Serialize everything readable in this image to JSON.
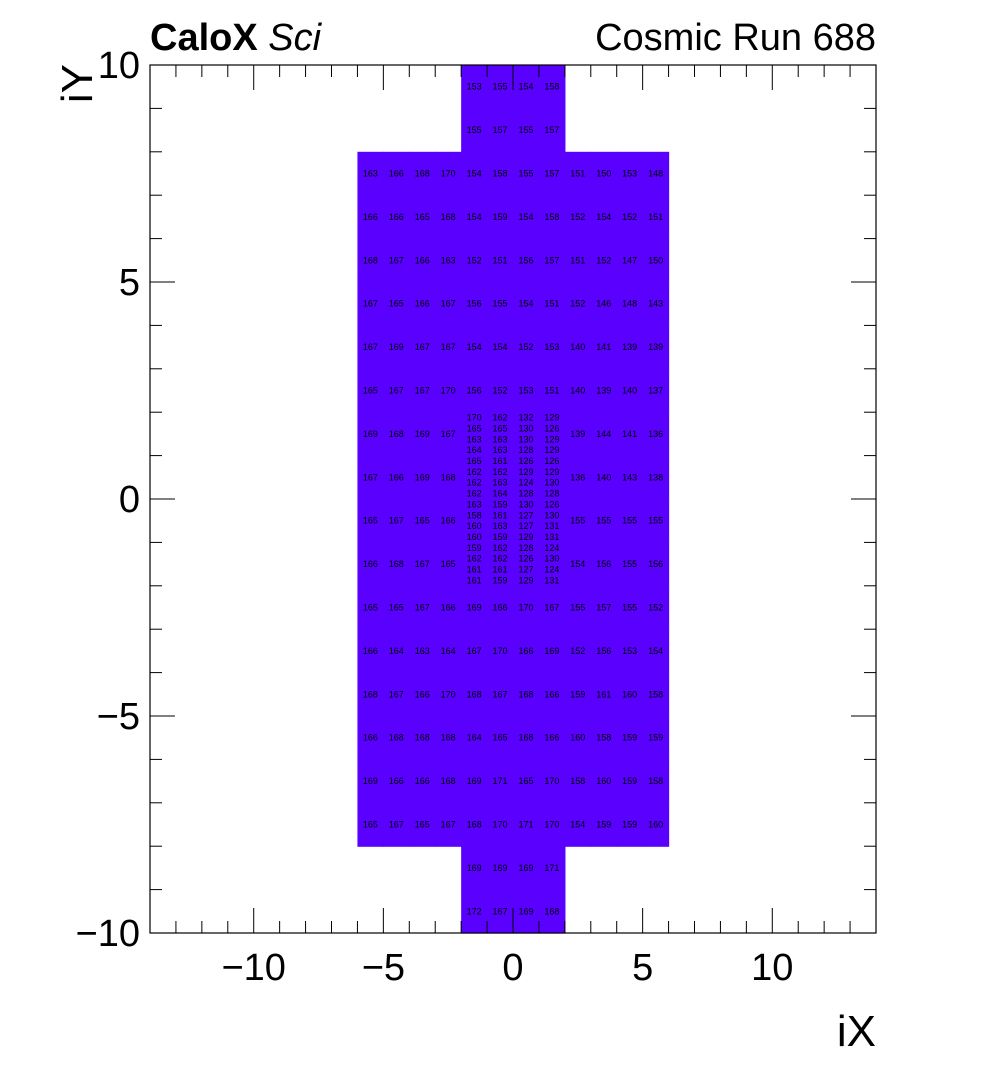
{
  "header": {
    "brand_bold": "CaloX",
    "brand_italic": "Sci",
    "run_label": "Cosmic Run 688"
  },
  "colors": {
    "cell_fill": "#5a00ff",
    "frame": "#000000",
    "text": "#000000"
  },
  "chart_data": {
    "type": "heatmap",
    "xlabel": "iX",
    "ylabel": "iY",
    "xlim": [
      -14,
      14
    ],
    "ylim": [
      -10,
      10
    ],
    "grid": false,
    "x_ticks": [
      {
        "value": -10,
        "label": "−10"
      },
      {
        "value": -5,
        "label": "−5"
      },
      {
        "value": 0,
        "label": "0"
      },
      {
        "value": 5,
        "label": "5"
      },
      {
        "value": 10,
        "label": "10"
      }
    ],
    "y_ticks": [
      {
        "value": -10,
        "label": "−10"
      },
      {
        "value": -5,
        "label": "−5"
      },
      {
        "value": 0,
        "label": "0"
      },
      {
        "value": 5,
        "label": "5"
      },
      {
        "value": 10,
        "label": "10"
      }
    ],
    "large_cells": {
      "width": 1,
      "height": 1,
      "rows": [
        {
          "y_bottom": 9,
          "x_left": -2,
          "values": [
            153,
            155,
            154,
            158
          ]
        },
        {
          "y_bottom": 8,
          "x_left": -2,
          "values": [
            155,
            157,
            155,
            157
          ]
        },
        {
          "y_bottom": 7,
          "x_left": -6,
          "values": [
            163,
            166,
            168,
            170,
            154,
            158,
            155,
            157,
            151,
            150,
            153,
            148
          ]
        },
        {
          "y_bottom": 6,
          "x_left": -6,
          "values": [
            166,
            166,
            165,
            168,
            154,
            159,
            154,
            158,
            152,
            154,
            152,
            151
          ]
        },
        {
          "y_bottom": 5,
          "x_left": -6,
          "values": [
            168,
            167,
            166,
            163,
            152,
            151,
            156,
            157,
            151,
            152,
            147,
            150
          ]
        },
        {
          "y_bottom": 4,
          "x_left": -6,
          "values": [
            167,
            165,
            166,
            167,
            156,
            155,
            154,
            151,
            152,
            146,
            148,
            143
          ]
        },
        {
          "y_bottom": 3,
          "x_left": -6,
          "values": [
            167,
            169,
            167,
            167,
            154,
            154,
            152,
            153,
            140,
            141,
            139,
            139
          ]
        },
        {
          "y_bottom": 2,
          "x_left": -6,
          "values": [
            165,
            167,
            167,
            170,
            156,
            152,
            153,
            151,
            140,
            139,
            140,
            137
          ]
        },
        {
          "y_bottom": 1,
          "x_left": -6,
          "values": [
            169,
            168,
            169,
            167
          ]
        },
        {
          "y_bottom": 1,
          "x_left": 2,
          "values": [
            139,
            144,
            141,
            136
          ]
        },
        {
          "y_bottom": 0,
          "x_left": -6,
          "values": [
            167,
            166,
            169,
            168
          ]
        },
        {
          "y_bottom": 0,
          "x_left": 2,
          "values": [
            136,
            140,
            143,
            138
          ]
        },
        {
          "y_bottom": -1,
          "x_left": -6,
          "values": [
            165,
            167,
            165,
            166
          ]
        },
        {
          "y_bottom": -1,
          "x_left": 2,
          "values": [
            155,
            155,
            155,
            155
          ]
        },
        {
          "y_bottom": -2,
          "x_left": -6,
          "values": [
            166,
            168,
            167,
            165
          ]
        },
        {
          "y_bottom": -2,
          "x_left": 2,
          "values": [
            154,
            156,
            155,
            156
          ]
        },
        {
          "y_bottom": -3,
          "x_left": -6,
          "values": [
            165,
            165,
            167,
            166,
            169,
            166,
            170,
            167,
            155,
            157,
            155,
            152
          ]
        },
        {
          "y_bottom": -4,
          "x_left": -6,
          "values": [
            166,
            164,
            163,
            164,
            167,
            170,
            166,
            169,
            152,
            156,
            153,
            154
          ]
        },
        {
          "y_bottom": -5,
          "x_left": -6,
          "values": [
            168,
            167,
            166,
            170,
            168,
            167,
            168,
            166,
            159,
            161,
            160,
            158
          ]
        },
        {
          "y_bottom": -6,
          "x_left": -6,
          "values": [
            166,
            168,
            168,
            168,
            164,
            165,
            168,
            166,
            160,
            158,
            159,
            159
          ]
        },
        {
          "y_bottom": -7,
          "x_left": -6,
          "values": [
            169,
            166,
            166,
            168,
            169,
            171,
            165,
            170,
            158,
            160,
            159,
            158
          ]
        },
        {
          "y_bottom": -8,
          "x_left": -6,
          "values": [
            165,
            167,
            165,
            167,
            168,
            170,
            171,
            170,
            154,
            159,
            159,
            160
          ]
        },
        {
          "y_bottom": -9,
          "x_left": -2,
          "values": [
            169,
            169,
            169,
            171
          ]
        },
        {
          "y_bottom": -10,
          "x_left": -2,
          "values": [
            172,
            167,
            169,
            168
          ]
        }
      ]
    },
    "fine_cells": {
      "x_left": -2,
      "width": 1,
      "height": 0.25,
      "y_top": 2,
      "rows": [
        [
          170,
          162,
          132,
          129
        ],
        [
          165,
          165,
          130,
          126
        ],
        [
          163,
          163,
          130,
          129
        ],
        [
          164,
          163,
          128,
          129
        ],
        [
          165,
          161,
          126,
          126
        ],
        [
          162,
          162,
          129,
          129
        ],
        [
          162,
          163,
          124,
          130
        ],
        [
          162,
          164,
          128,
          128
        ],
        [
          163,
          159,
          130,
          126
        ],
        [
          158,
          161,
          127,
          130
        ],
        [
          160,
          163,
          127,
          131
        ],
        [
          160,
          159,
          129,
          131
        ],
        [
          159,
          162,
          128,
          124
        ],
        [
          162,
          162,
          126,
          130
        ],
        [
          161,
          161,
          127,
          124
        ],
        [
          161,
          159,
          129,
          131
        ]
      ]
    }
  }
}
